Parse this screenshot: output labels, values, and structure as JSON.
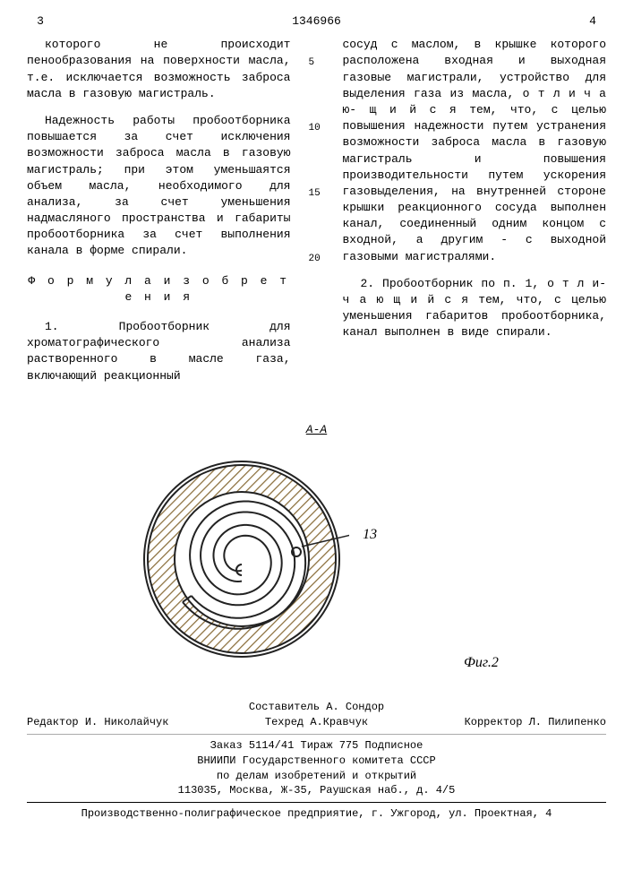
{
  "header": {
    "page_left": "3",
    "doc_num": "1346966",
    "page_right": "4"
  },
  "line_markers": [
    "5",
    "10",
    "15",
    "20"
  ],
  "left_column": {
    "para1": "которого не происходит пенообразования на поверхности масла, т.е. исключается возможность заброса масла в газовую магистраль.",
    "para2": "Надежность работы пробоотборника повышается за счет исключения возможности заброса масла в газовую магистраль; при этом уменьшаятся объем масла, необходимого для анализа, за счет уменьшения надмасляного пространства и габариты пробоотборника за счет выполнения канала в форме спирали.",
    "formula_title": "Ф о р м у л а   и з о б р е т е н и я",
    "para3": "1. Пробоотборник для хроматографического анализа растворенного в масле газа, включающий реакционный"
  },
  "right_column": {
    "para1": "сосуд с маслом, в крышке которого расположена входная и выходная газовые магистрали, устройство для выделения газа из масла, о т л и ч а ю- щ и й с я  тем, что, с целью повышения надежности путем устранения возможности заброса масла в газовую магистраль и повышения производительности путем ускорения газовыделения, на внутренней стороне крышки реакционного сосуда выполнен канал, соединенный одним концом с входной, а другим - с выходной газовыми магистралями.",
    "para2": "2. Пробоотборник по п. 1, о т л и- ч а ю щ и й с я  тем, что, с целью уменьшения габаритов пробоотборника, канал выполнен в виде спирали."
  },
  "figure": {
    "section_label": "А-А",
    "annotation": "13",
    "caption": "Фиг.2",
    "colors": {
      "hatch": "#8b6f3c",
      "outline": "#222",
      "bg": "#fff"
    },
    "svg_size": 240,
    "outer_radius": 105,
    "inner_radius": 75
  },
  "footer": {
    "compiler_label": "Составитель",
    "compiler": "А. Сондор",
    "editor_label": "Редактор",
    "editor": "И. Николайчук",
    "tech_label": "Техред",
    "tech": "А.Кравчук",
    "corrector_label": "Корректор",
    "corrector": "Л. Пилипенко",
    "order_line": "Заказ 5114/41            Тираж 775            Подписное",
    "org1": "ВНИИПИ Государственного комитета СССР",
    "org2": "по делам изобретений и открытий",
    "addr1": "113035, Москва, Ж-35, Раушская наб., д. 4/5",
    "addr2": "Производственно-полиграфическое предприятие, г. Ужгород, ул. Проектная, 4"
  }
}
